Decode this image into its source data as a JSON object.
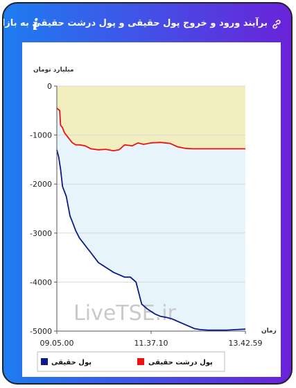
{
  "header": {
    "title": "برآیند ورود و خروج پول حقیقی و پول درشت حقیقی به بازار",
    "info_icon": "info-icon",
    "link_icon": "link-icon"
  },
  "colors": {
    "series_real": "#0a1a8c",
    "series_big": "#ee1111",
    "area_upper": "#f2eec0",
    "area_lower": "#e8f4fb"
  },
  "chart_data": {
    "type": "line",
    "ylabel": "میلیارد تومان",
    "xlabel": "زمان",
    "ylim": [
      -5000,
      0
    ],
    "yticks": [
      "0",
      "-1000",
      "-2000",
      "-3000",
      "-4000",
      "-5000"
    ],
    "ytick_values": [
      0,
      -1000,
      -2000,
      -3000,
      -4000,
      -5000
    ],
    "xtick_labels": [
      "09.05.00",
      "11.37.10",
      "13.42.59"
    ],
    "xtick_positions": [
      0,
      0.5,
      1
    ],
    "watermark": "LiveTSE.ir",
    "legend_position": "bottom",
    "series": [
      {
        "name": "پول حقیقی",
        "color": "#0a1a8c",
        "t": [
          0,
          0.01,
          0.02,
          0.03,
          0.04,
          0.05,
          0.06,
          0.07,
          0.08,
          0.09,
          0.1,
          0.12,
          0.14,
          0.16,
          0.18,
          0.2,
          0.22,
          0.24,
          0.26,
          0.28,
          0.3,
          0.33,
          0.36,
          0.39,
          0.42,
          0.45,
          0.48,
          0.5,
          0.52,
          0.55,
          0.58,
          0.61,
          0.64,
          0.67,
          0.7,
          0.73,
          0.76,
          0.8,
          0.85,
          0.9,
          0.95,
          1.0
        ],
        "values": [
          -1300,
          -1450,
          -1700,
          -2050,
          -2150,
          -2250,
          -2450,
          -2650,
          -2750,
          -2850,
          -2950,
          -3100,
          -3200,
          -3300,
          -3400,
          -3500,
          -3600,
          -3650,
          -3700,
          -3750,
          -3800,
          -3850,
          -3900,
          -3900,
          -4000,
          -4450,
          -4550,
          -4600,
          -4650,
          -4700,
          -4720,
          -4750,
          -4800,
          -4850,
          -4900,
          -4950,
          -4970,
          -4980,
          -4980,
          -4980,
          -4970,
          -4960
        ]
      },
      {
        "name": "پول درشت حقیقی",
        "color": "#ee1111",
        "t": [
          0,
          0.015,
          0.02,
          0.03,
          0.04,
          0.06,
          0.08,
          0.1,
          0.12,
          0.15,
          0.18,
          0.22,
          0.26,
          0.3,
          0.33,
          0.36,
          0.4,
          0.43,
          0.46,
          0.5,
          0.55,
          0.6,
          0.64,
          0.68,
          0.72,
          0.8,
          0.9,
          1.0
        ],
        "values": [
          -450,
          -500,
          -800,
          -850,
          -950,
          -1050,
          -1150,
          -1200,
          -1200,
          -1220,
          -1280,
          -1300,
          -1290,
          -1320,
          -1300,
          -1200,
          -1220,
          -1160,
          -1190,
          -1160,
          -1150,
          -1170,
          -1240,
          -1270,
          -1280,
          -1280,
          -1280,
          -1280
        ]
      }
    ]
  }
}
